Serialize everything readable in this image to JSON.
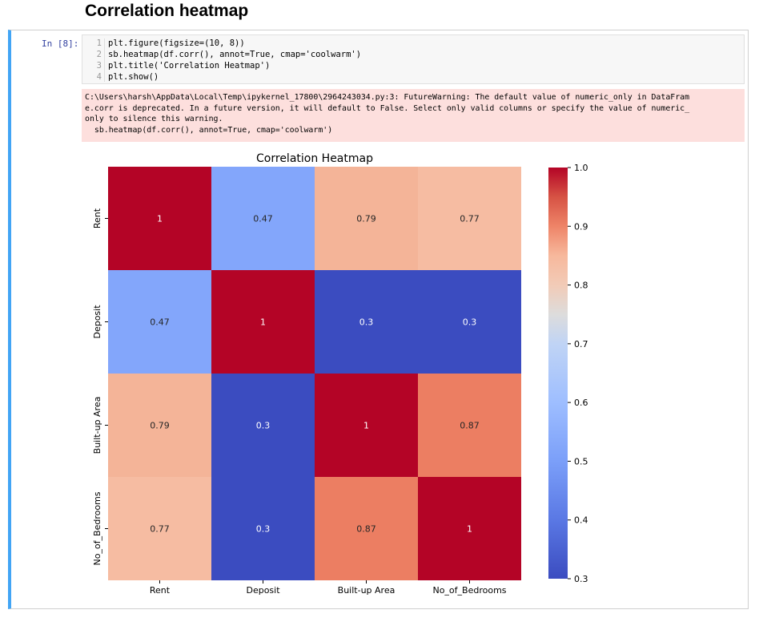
{
  "section_title": "Correlation heatmap",
  "cell": {
    "prompt": "In [8]:",
    "code_lines": [
      {
        "n": "1",
        "text": "plt.figure(figsize=(10, 8))"
      },
      {
        "n": "2",
        "text": "sb.heatmap(df.corr(), annot=True, cmap='coolwarm')"
      },
      {
        "n": "3",
        "text": "plt.title('Correlation Heatmap')"
      },
      {
        "n": "4",
        "text": "plt.show()"
      }
    ],
    "stderr_lines": [
      "C:\\Users\\harsh\\AppData\\Local\\Temp\\ipykernel_17800\\2964243034.py:3: FutureWarning: The default value of numeric_only in DataFram",
      "e.corr is deprecated. In a future version, it will default to False. Select only valid columns or specify the value of numeric_",
      "only to silence this warning.",
      "  sb.heatmap(df.corr(), annot=True, cmap='coolwarm')"
    ]
  },
  "chart_data": {
    "type": "heatmap",
    "title": "Correlation Heatmap",
    "rows": [
      "Rent",
      "Deposit",
      "Built-up Area",
      "No_of_Bedrooms"
    ],
    "cols": [
      "Rent",
      "Deposit",
      "Built-up Area",
      "No_of_Bedrooms"
    ],
    "values": [
      [
        1,
        0.47,
        0.79,
        0.77
      ],
      [
        0.47,
        1,
        0.3,
        0.3
      ],
      [
        0.79,
        0.3,
        1,
        0.87
      ],
      [
        0.77,
        0.3,
        0.87,
        1
      ]
    ],
    "annotations": [
      [
        "1",
        "0.47",
        "0.79",
        "0.77"
      ],
      [
        "0.47",
        "1",
        "0.3",
        "0.3"
      ],
      [
        "0.79",
        "0.3",
        "1",
        "0.87"
      ],
      [
        "0.77",
        "0.3",
        "0.87",
        "1"
      ]
    ],
    "colormap": "coolwarm",
    "colorbar_range": [
      0.3,
      1.0
    ],
    "colorbar_ticks": [
      "0.3",
      "0.4",
      "0.5",
      "0.6",
      "0.7",
      "0.8",
      "0.9",
      "1.0"
    ]
  }
}
